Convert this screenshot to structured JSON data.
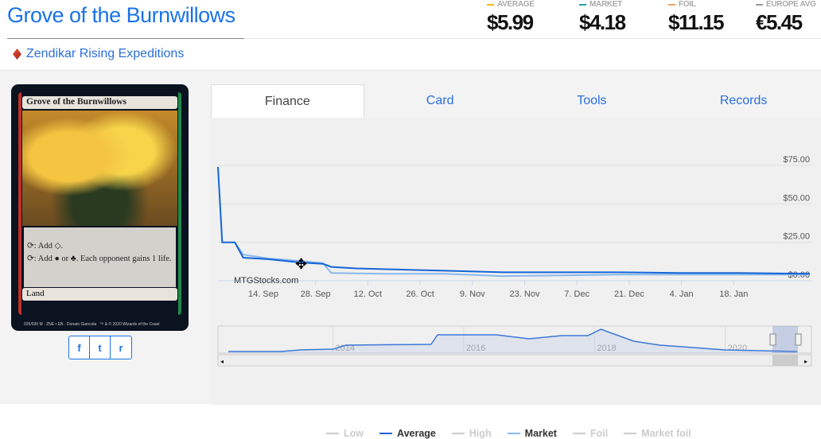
{
  "title": "Grove of the Burnwillows",
  "set": "Zendikar Rising Expeditions",
  "prices": [
    {
      "label": "AVERAGE",
      "value": "$5.99",
      "color": "#f5b800"
    },
    {
      "label": "MARKET",
      "value": "$4.18",
      "color": "#20a0b0"
    },
    {
      "label": "FOIL",
      "value": "$11.15",
      "color": "#f0a060"
    },
    {
      "label": "EUROPE AVG",
      "value": "€5.45",
      "color": "#999999"
    }
  ],
  "card": {
    "name": "Grove of the Burnwillows",
    "ability1": "⟳: Add ◇.",
    "ability2": "⟳: Add ● or ♣. Each opponent gains 1 life.",
    "type": "Land",
    "collector": "025/030 M · ZNE • EN · Donato Giancola",
    "copyright": "™ & © 2020 Wizards of the Coast"
  },
  "share": {
    "icons": [
      "facebook-icon",
      "twitter-icon",
      "reddit-icon"
    ],
    "glyphs": [
      "f",
      "t",
      "r"
    ]
  },
  "tabs": [
    "Finance",
    "Card",
    "Tools",
    "Records"
  ],
  "active_tab": "Finance",
  "chart_data": {
    "type": "line",
    "watermark": "MTGStocks.com",
    "y_ticks": [
      "$0.00",
      "$25.00",
      "$50.00",
      "$75.00"
    ],
    "ylim": [
      0,
      80
    ],
    "x_ticks": [
      "14. Sep",
      "28. Sep",
      "12. Oct",
      "26. Oct",
      "9. Nov",
      "23. Nov",
      "7. Dec",
      "21. Dec",
      "4. Jan",
      "18. Jan"
    ],
    "x_range": [
      "2020-09-02",
      "2021-01-21"
    ],
    "series": [
      {
        "name": "Average",
        "color": "#1565d8",
        "points": [
          [
            "2020-09-02",
            74
          ],
          [
            "2020-09-03",
            25
          ],
          [
            "2020-09-06",
            25
          ],
          [
            "2020-09-08",
            15
          ],
          [
            "2020-09-14",
            14
          ],
          [
            "2020-09-21",
            12
          ],
          [
            "2020-09-27",
            11
          ],
          [
            "2020-09-29",
            9
          ],
          [
            "2020-10-05",
            8
          ],
          [
            "2020-10-12",
            7.5
          ],
          [
            "2020-10-26",
            6.5
          ],
          [
            "2020-11-09",
            5.5
          ],
          [
            "2020-11-23",
            5.5
          ],
          [
            "2020-12-07",
            5.5
          ],
          [
            "2020-12-21",
            5
          ],
          [
            "2021-01-04",
            5
          ],
          [
            "2021-01-21",
            4.5
          ]
        ]
      },
      {
        "name": "Market",
        "color": "#8ab8ee",
        "points": [
          [
            "2020-09-06",
            25
          ],
          [
            "2020-09-08",
            17
          ],
          [
            "2020-09-14",
            14.5
          ],
          [
            "2020-09-21",
            13
          ],
          [
            "2020-09-27",
            11.5
          ],
          [
            "2020-09-29",
            5
          ],
          [
            "2020-10-12",
            4.5
          ],
          [
            "2020-10-26",
            4.5
          ],
          [
            "2020-11-09",
            3
          ],
          [
            "2020-11-23",
            3.5
          ],
          [
            "2020-12-07",
            4
          ],
          [
            "2020-12-21",
            4
          ],
          [
            "2021-01-04",
            4
          ],
          [
            "2021-01-21",
            4
          ]
        ]
      }
    ],
    "navigator": {
      "x_ticks": [
        "2014",
        "2016",
        "2018",
        "2020"
      ],
      "range": [
        2012.4,
        2021.1
      ],
      "points": [
        [
          2012.4,
          1
        ],
        [
          2013.2,
          1
        ],
        [
          2013.5,
          3
        ],
        [
          2014,
          4
        ],
        [
          2014.2,
          9
        ],
        [
          2015.5,
          10
        ],
        [
          2015.6,
          22
        ],
        [
          2016.5,
          22
        ],
        [
          2017,
          17
        ],
        [
          2017.5,
          21
        ],
        [
          2017.9,
          21
        ],
        [
          2018.1,
          29
        ],
        [
          2018.6,
          14
        ],
        [
          2019,
          9
        ],
        [
          2020,
          3
        ],
        [
          2021.1,
          1
        ]
      ]
    },
    "legend": [
      {
        "name": "Low",
        "active": false
      },
      {
        "name": "Average",
        "active": true,
        "color": "#1565d8"
      },
      {
        "name": "High",
        "active": false
      },
      {
        "name": "Market",
        "active": true,
        "color": "#8ab8ee"
      },
      {
        "name": "Foil",
        "active": false
      },
      {
        "name": "Market foil",
        "active": false
      }
    ]
  }
}
